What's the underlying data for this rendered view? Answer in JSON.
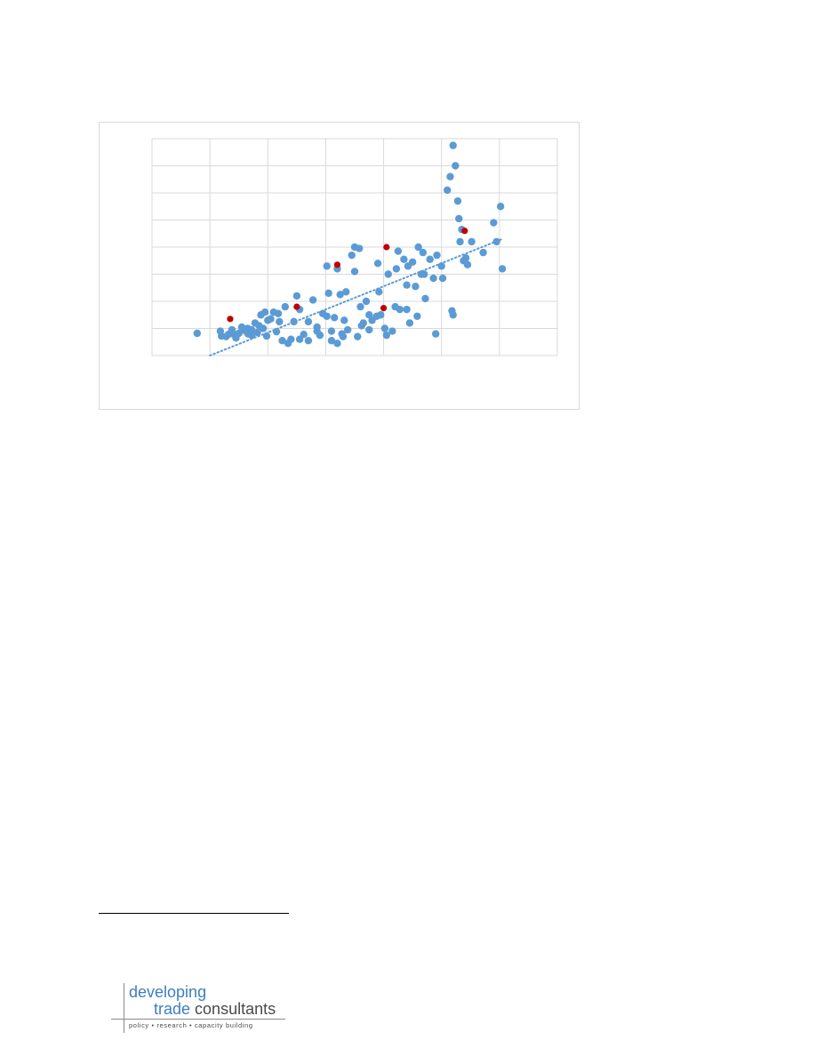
{
  "chart_data": {
    "type": "scatter",
    "title": "",
    "xlabel": "",
    "ylabel": "",
    "xlim": [
      0,
      7
    ],
    "ylim": [
      0,
      8
    ],
    "grid": true,
    "legend": "none",
    "trendline": {
      "style": "dotted",
      "color": "#5b9bd5",
      "x": [
        1.0,
        6.05
      ],
      "y": [
        0.0,
        4.3
      ]
    },
    "series": [
      {
        "color": "#5b9bd5",
        "points": [
          [
            0.78,
            0.82
          ],
          [
            1.18,
            0.9
          ],
          [
            1.2,
            0.72
          ],
          [
            1.28,
            0.7
          ],
          [
            1.32,
            0.78
          ],
          [
            1.38,
            0.95
          ],
          [
            1.45,
            0.65
          ],
          [
            1.5,
            0.82
          ],
          [
            1.55,
            1.05
          ],
          [
            1.6,
            0.92
          ],
          [
            1.66,
            0.8
          ],
          [
            1.72,
            0.95
          ],
          [
            1.78,
            1.2
          ],
          [
            1.82,
            0.85
          ],
          [
            1.88,
            1.5
          ],
          [
            1.92,
            1.0
          ],
          [
            1.98,
            0.72
          ],
          [
            2.05,
            1.35
          ],
          [
            2.1,
            1.6
          ],
          [
            2.15,
            0.88
          ],
          [
            2.2,
            1.25
          ],
          [
            2.25,
            0.55
          ],
          [
            2.3,
            1.8
          ],
          [
            2.35,
            0.45
          ],
          [
            2.5,
            2.2
          ],
          [
            2.55,
            1.7
          ],
          [
            2.62,
            0.78
          ],
          [
            2.7,
            1.25
          ],
          [
            2.78,
            2.05
          ],
          [
            2.85,
            1.05
          ],
          [
            2.9,
            0.75
          ],
          [
            2.95,
            1.55
          ],
          [
            3.02,
            1.45
          ],
          [
            3.1,
            0.9
          ],
          [
            3.15,
            1.4
          ],
          [
            3.2,
            3.2
          ],
          [
            3.25,
            2.25
          ],
          [
            3.32,
            1.3
          ],
          [
            3.38,
            0.95
          ],
          [
            3.45,
            3.7
          ],
          [
            3.5,
            3.1
          ],
          [
            3.55,
            0.7
          ],
          [
            3.62,
            1.1
          ],
          [
            3.7,
            2.0
          ],
          [
            3.75,
            1.5
          ],
          [
            3.8,
            1.3
          ],
          [
            3.9,
            3.4
          ],
          [
            3.95,
            1.5
          ],
          [
            4.02,
            1.0
          ],
          [
            4.08,
            3.0
          ],
          [
            4.15,
            0.9
          ],
          [
            4.22,
            3.2
          ],
          [
            4.28,
            1.7
          ],
          [
            4.35,
            3.55
          ],
          [
            4.42,
            3.3
          ],
          [
            4.5,
            3.45
          ],
          [
            4.58,
            1.45
          ],
          [
            4.65,
            3.0
          ],
          [
            4.72,
            2.1
          ],
          [
            4.8,
            3.55
          ],
          [
            4.86,
            2.85
          ],
          [
            4.92,
            3.7
          ],
          [
            5.02,
            2.85
          ],
          [
            5.1,
            6.1
          ],
          [
            5.15,
            6.6
          ],
          [
            5.2,
            7.75
          ],
          [
            5.24,
            7.0
          ],
          [
            5.28,
            5.7
          ],
          [
            5.32,
            4.2
          ],
          [
            5.38,
            3.5
          ],
          [
            5.45,
            3.35
          ],
          [
            5.52,
            4.2
          ],
          [
            5.72,
            3.8
          ],
          [
            5.95,
            4.2
          ],
          [
            6.02,
            5.5
          ],
          [
            6.05,
            3.2
          ],
          [
            4.4,
            1.7
          ],
          [
            4.9,
            0.8
          ],
          [
            5.2,
            1.5
          ],
          [
            2.0,
            1.3
          ],
          [
            3.65,
            1.2
          ],
          [
            2.7,
            0.55
          ],
          [
            3.2,
            0.45
          ],
          [
            3.5,
            4.0
          ],
          [
            4.4,
            2.6
          ],
          [
            4.6,
            4.0
          ],
          [
            3.3,
            0.7
          ],
          [
            3.75,
            0.95
          ],
          [
            3.88,
            1.45
          ],
          [
            4.05,
            0.75
          ],
          [
            4.2,
            1.8
          ],
          [
            1.4,
            0.8
          ],
          [
            1.65,
            1.0
          ],
          [
            2.4,
            0.6
          ],
          [
            3.1,
            0.55
          ],
          [
            3.35,
            2.35
          ],
          [
            5.0,
            3.3
          ],
          [
            5.3,
            5.05
          ],
          [
            5.9,
            4.9
          ],
          [
            5.42,
            3.6
          ],
          [
            4.7,
            3.0
          ],
          [
            3.6,
            1.8
          ],
          [
            2.85,
            0.9
          ],
          [
            1.95,
            1.6
          ],
          [
            2.18,
            1.55
          ],
          [
            3.28,
            0.8
          ],
          [
            3.05,
            2.3
          ],
          [
            4.55,
            2.55
          ],
          [
            1.72,
            0.75
          ],
          [
            2.55,
            0.6
          ],
          [
            3.58,
            3.95
          ],
          [
            5.35,
            4.65
          ],
          [
            4.25,
            3.85
          ],
          [
            3.02,
            3.3
          ],
          [
            2.45,
            1.25
          ],
          [
            1.85,
            1.1
          ],
          [
            3.92,
            2.35
          ],
          [
            4.45,
            1.2
          ],
          [
            5.18,
            1.65
          ],
          [
            4.68,
            3.8
          ]
        ]
      },
      {
        "color": "#c00000",
        "points": [
          [
            1.35,
            1.35
          ],
          [
            2.5,
            1.8
          ],
          [
            3.2,
            3.35
          ],
          [
            4.05,
            4.0
          ],
          [
            4.0,
            1.75
          ],
          [
            5.4,
            4.6
          ]
        ]
      }
    ]
  },
  "logo": {
    "line1": "developing",
    "line2a": "trade",
    "line2b": "consultants",
    "tagline": "policy  •  research  •  capacity building"
  }
}
